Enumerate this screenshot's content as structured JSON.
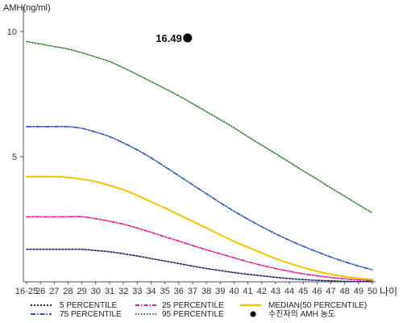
{
  "chart_data": {
    "type": "line",
    "ylabel": "AMH(ng/ml)",
    "xlabel": "나이",
    "ylim": [
      0,
      11
    ],
    "yticks": [
      {
        "value": 5,
        "label": "5"
      },
      {
        "value": 10,
        "label": "10"
      }
    ],
    "categories": [
      "16-25",
      "26",
      "27",
      "28",
      "29",
      "30",
      "31",
      "32",
      "33",
      "34",
      "35",
      "36",
      "37",
      "38",
      "39",
      "40",
      "41",
      "42",
      "43",
      "44",
      "45",
      "46",
      "47",
      "48",
      "49",
      "50"
    ],
    "series": [
      {
        "name": "5 PERCENTILE",
        "color": "#1f1f5e",
        "values": [
          1.3,
          1.3,
          1.3,
          1.3,
          1.3,
          1.25,
          1.2,
          1.12,
          1.03,
          0.93,
          0.83,
          0.73,
          0.63,
          0.53,
          0.45,
          0.37,
          0.3,
          0.24,
          0.18,
          0.13,
          0.09,
          0.06,
          0.04,
          0.02,
          0.01,
          0.01
        ]
      },
      {
        "name": "25 PERCENTILE",
        "color": "#e6198c",
        "values": [
          2.6,
          2.6,
          2.6,
          2.6,
          2.6,
          2.52,
          2.42,
          2.3,
          2.15,
          1.98,
          1.8,
          1.63,
          1.45,
          1.28,
          1.12,
          0.96,
          0.8,
          0.66,
          0.53,
          0.42,
          0.32,
          0.24,
          0.17,
          0.12,
          0.08,
          0.05
        ]
      },
      {
        "name": "MEDIAN(50 PERCENTILE)",
        "color": "#f2c500",
        "values": [
          4.2,
          4.2,
          4.2,
          4.17,
          4.1,
          4.0,
          3.85,
          3.67,
          3.45,
          3.2,
          2.95,
          2.68,
          2.42,
          2.15,
          1.88,
          1.62,
          1.38,
          1.15,
          0.93,
          0.74,
          0.57,
          0.42,
          0.3,
          0.21,
          0.14,
          0.09
        ]
      },
      {
        "name": "75 PERCENTILE",
        "color": "#2a52be",
        "values": [
          6.2,
          6.2,
          6.2,
          6.2,
          6.13,
          5.98,
          5.8,
          5.55,
          5.27,
          4.95,
          4.6,
          4.24,
          3.88,
          3.52,
          3.16,
          2.82,
          2.5,
          2.2,
          1.92,
          1.66,
          1.42,
          1.2,
          0.99,
          0.8,
          0.63,
          0.48
        ]
      },
      {
        "name": "95 PERCENTILE",
        "color": "#2e7d32",
        "values": [
          9.6,
          9.5,
          9.4,
          9.3,
          9.15,
          8.98,
          8.8,
          8.55,
          8.28,
          8.0,
          7.72,
          7.43,
          7.12,
          6.8,
          6.48,
          6.15,
          5.8,
          5.46,
          5.12,
          4.78,
          4.43,
          4.1,
          3.75,
          3.42,
          3.08,
          2.75
        ]
      }
    ],
    "marker": {
      "name": "수진자의 AMH 농도",
      "x": "36",
      "y": 16.49,
      "label": "16.49",
      "color": "#000000"
    },
    "legend_position": "bottom"
  }
}
